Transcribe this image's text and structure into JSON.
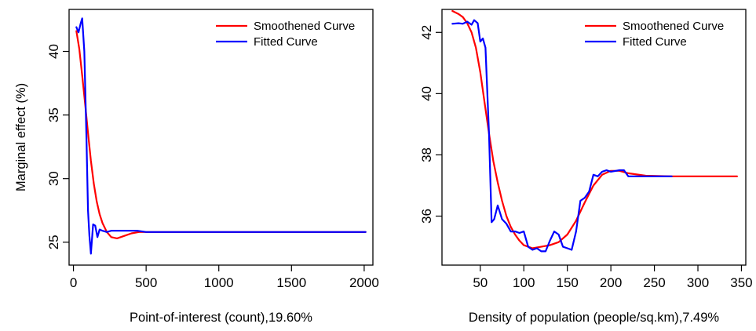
{
  "chart_data": [
    {
      "type": "line",
      "xlabel": "Point-of-interest (count),19.60%",
      "ylabel": "Marginal effect (%)",
      "xlim": [
        -30,
        2060
      ],
      "ylim": [
        23.2,
        43.3
      ],
      "xticks": [
        0,
        500,
        1000,
        1500,
        2000
      ],
      "yticks": [
        25,
        30,
        35,
        40
      ],
      "legend_position": "top-right",
      "series": [
        {
          "name": "Smoothened Curve",
          "color": "#ff0000",
          "x": [
            20,
            40,
            60,
            80,
            100,
            120,
            140,
            160,
            180,
            200,
            230,
            260,
            300,
            350,
            400,
            450,
            500,
            700,
            1000,
            1500,
            2010
          ],
          "y": [
            41.6,
            40.2,
            38.1,
            35.9,
            33.6,
            31.4,
            29.6,
            28.2,
            27.2,
            26.5,
            25.8,
            25.4,
            25.3,
            25.5,
            25.7,
            25.8,
            25.8,
            25.8,
            25.8,
            25.8,
            25.8
          ]
        },
        {
          "name": "Fitted Curve",
          "color": "#0000ff",
          "x": [
            20,
            35,
            50,
            60,
            75,
            90,
            100,
            110,
            120,
            135,
            150,
            165,
            180,
            200,
            230,
            260,
            300,
            350,
            400,
            440,
            500,
            700,
            1000,
            1500,
            2010
          ],
          "y": [
            41.9,
            41.5,
            42.2,
            42.6,
            40.0,
            33.0,
            27.5,
            25.5,
            24.1,
            26.4,
            26.3,
            25.4,
            26.0,
            25.9,
            25.8,
            25.9,
            25.9,
            25.9,
            25.9,
            25.9,
            25.8,
            25.8,
            25.8,
            25.8,
            25.8
          ]
        }
      ]
    },
    {
      "type": "line",
      "xlabel": "Density of population (people/sq.km),7.49%",
      "ylabel": "",
      "xlim": [
        6,
        355
      ],
      "ylim": [
        34.4,
        42.75
      ],
      "xticks": [
        50,
        100,
        150,
        200,
        250,
        300,
        350
      ],
      "yticks": [
        36,
        38,
        40,
        42
      ],
      "legend_position": "top-right",
      "series": [
        {
          "name": "Smoothened Curve",
          "color": "#ff0000",
          "x": [
            18,
            25,
            30,
            35,
            40,
            45,
            50,
            55,
            60,
            65,
            70,
            75,
            80,
            85,
            90,
            95,
            100,
            110,
            120,
            130,
            140,
            150,
            160,
            170,
            180,
            190,
            200,
            210,
            220,
            240,
            270,
            300,
            345
          ],
          "y": [
            42.7,
            42.6,
            42.5,
            42.3,
            42.0,
            41.5,
            40.7,
            39.7,
            38.7,
            37.8,
            37.1,
            36.5,
            36.0,
            35.65,
            35.4,
            35.2,
            35.05,
            34.95,
            35.0,
            35.05,
            35.15,
            35.4,
            35.85,
            36.45,
            37.0,
            37.35,
            37.48,
            37.48,
            37.4,
            37.32,
            37.3,
            37.3,
            37.3
          ]
        },
        {
          "name": "Fitted Curve",
          "color": "#0000ff",
          "x": [
            18,
            25,
            30,
            35,
            40,
            43,
            47,
            50,
            53,
            56,
            60,
            63,
            66,
            70,
            75,
            80,
            85,
            90,
            95,
            100,
            105,
            110,
            115,
            120,
            125,
            130,
            135,
            140,
            145,
            150,
            155,
            160,
            165,
            170,
            175,
            180,
            185,
            190,
            195,
            200,
            210,
            215,
            220,
            240,
            260,
            270
          ],
          "y": [
            42.28,
            42.3,
            42.28,
            42.35,
            42.25,
            42.4,
            42.3,
            41.7,
            41.8,
            41.5,
            38.7,
            35.8,
            35.9,
            36.35,
            35.9,
            35.75,
            35.5,
            35.5,
            35.45,
            35.5,
            35.0,
            34.9,
            34.95,
            34.85,
            34.85,
            35.2,
            35.5,
            35.4,
            35.0,
            34.95,
            34.9,
            35.5,
            36.5,
            36.6,
            36.8,
            37.35,
            37.3,
            37.45,
            37.5,
            37.45,
            37.5,
            37.5,
            37.3,
            37.3,
            37.3,
            37.3
          ]
        }
      ]
    }
  ]
}
